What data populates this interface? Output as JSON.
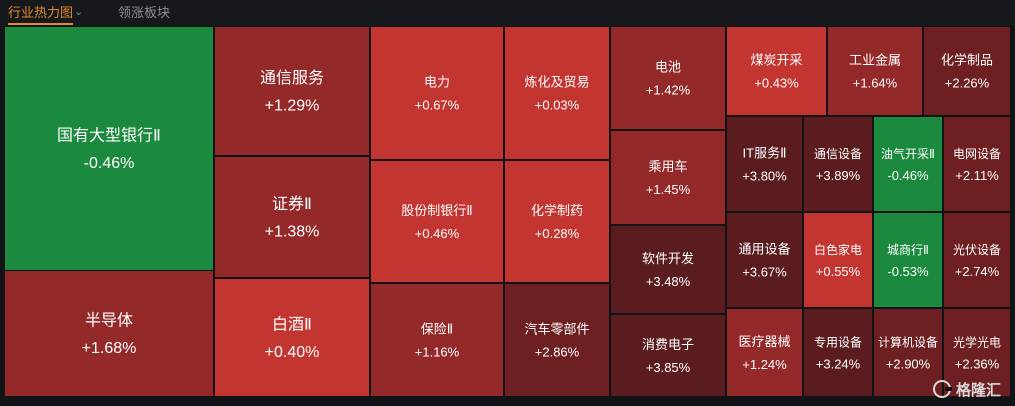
{
  "header": {
    "active_tab": "行业热力图",
    "other_tab": "领涨板块",
    "dropdown_icon": "chevron-down-icon"
  },
  "watermark": {
    "text": "格隆汇",
    "icon": "logo-g-icon"
  },
  "colors": {
    "positive_light": "#c23531",
    "positive_mid": "#94292a",
    "positive_dark": "#5a1c1e",
    "negative": "#1b8a3e",
    "background": "#121316"
  },
  "chart_data": {
    "type": "heatmap",
    "title": "",
    "tiles": [
      {
        "name": "国有大型银行Ⅱ",
        "change": -0.46,
        "label": "-0.46%"
      },
      {
        "name": "半导体",
        "change": 1.68,
        "label": "+1.68%"
      },
      {
        "name": "通信服务",
        "change": 1.29,
        "label": "+1.29%"
      },
      {
        "name": "证券Ⅱ",
        "change": 1.38,
        "label": "+1.38%"
      },
      {
        "name": "白酒Ⅱ",
        "change": 0.4,
        "label": "+0.40%"
      },
      {
        "name": "电力",
        "change": 0.67,
        "label": "+0.67%"
      },
      {
        "name": "炼化及贸易",
        "change": 0.03,
        "label": "+0.03%"
      },
      {
        "name": "股份制银行Ⅱ",
        "change": 0.46,
        "label": "+0.46%"
      },
      {
        "name": "化学制药",
        "change": 0.28,
        "label": "+0.28%"
      },
      {
        "name": "保险Ⅱ",
        "change": 1.16,
        "label": "+1.16%"
      },
      {
        "name": "汽车零部件",
        "change": 2.86,
        "label": "+2.86%"
      },
      {
        "name": "电池",
        "change": 1.42,
        "label": "+1.42%"
      },
      {
        "name": "乘用车",
        "change": 1.45,
        "label": "+1.45%"
      },
      {
        "name": "软件开发",
        "change": 3.48,
        "label": "+3.48%"
      },
      {
        "name": "消费电子",
        "change": 3.85,
        "label": "+3.85%"
      },
      {
        "name": "煤炭开采",
        "change": 0.43,
        "label": "+0.43%"
      },
      {
        "name": "工业金属",
        "change": 1.64,
        "label": "+1.64%"
      },
      {
        "name": "化学制品",
        "change": 2.26,
        "label": "+2.26%"
      },
      {
        "name": "IT服务Ⅱ",
        "change": 3.8,
        "label": "+3.80%"
      },
      {
        "name": "通信设备",
        "change": 3.89,
        "label": "+3.89%"
      },
      {
        "name": "油气开采Ⅱ",
        "change": -0.46,
        "label": "-0.46%"
      },
      {
        "name": "电网设备",
        "change": 2.11,
        "label": "+2.11%"
      },
      {
        "name": "通用设备",
        "change": 3.67,
        "label": "+3.67%"
      },
      {
        "name": "白色家电",
        "change": 0.55,
        "label": "+0.55%"
      },
      {
        "name": "城商行Ⅱ",
        "change": -0.53,
        "label": "-0.53%"
      },
      {
        "name": "光伏设备",
        "change": 2.74,
        "label": "+2.74%"
      },
      {
        "name": "医疗器械",
        "change": 1.24,
        "label": "+1.24%"
      },
      {
        "name": "专用设备",
        "change": 3.24,
        "label": "+3.24%"
      },
      {
        "name": "计算机设备",
        "change": 2.9,
        "label": "+2.90%"
      },
      {
        "name": "光学光电",
        "change": 2.36,
        "label": "+2.36%"
      }
    ]
  }
}
